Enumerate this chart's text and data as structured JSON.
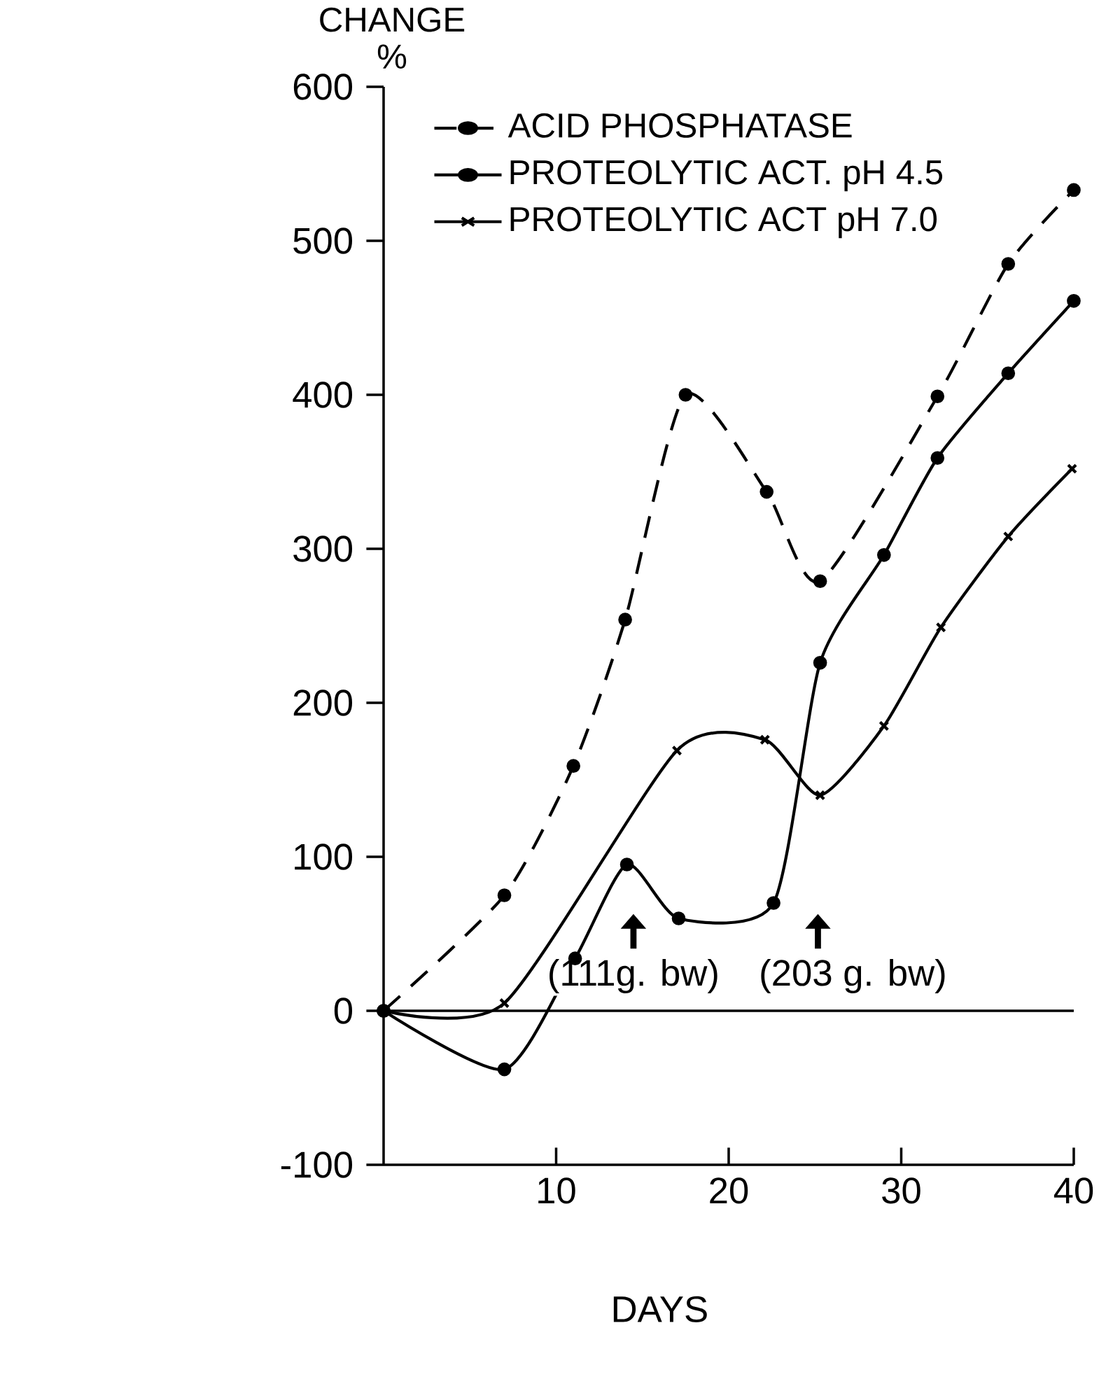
{
  "chart_data": {
    "type": "line",
    "xlabel": "DAYS",
    "ylabel": "CHANGE %",
    "xlim": [
      0,
      40
    ],
    "ylim": [
      -100,
      600
    ],
    "xticks": [
      10,
      20,
      30,
      40
    ],
    "yticks": [
      -100,
      0,
      100,
      200,
      300,
      400,
      500,
      600
    ],
    "legend": "top left",
    "grid": false,
    "series": [
      {
        "name": "ACID PHOSPHATASE",
        "color": "#000000",
        "line_style": "dashed",
        "marker": "circle",
        "x": [
          0,
          7,
          11,
          14,
          17.5,
          22.2,
          25.3,
          32.1,
          36.2,
          40
        ],
        "values": [
          0,
          75,
          159,
          254,
          400,
          337,
          279,
          399,
          485,
          533
        ]
      },
      {
        "name": "PROTEOLYTIC ACT. pH 4.5",
        "color": "#000000",
        "line_style": "solid",
        "marker": "circle",
        "x": [
          0,
          7,
          11.1,
          14.1,
          17.1,
          22.6,
          25.3,
          29,
          32.1,
          36.2,
          40
        ],
        "values": [
          0,
          -38,
          34,
          95,
          60,
          70,
          226,
          296,
          359,
          414,
          461
        ]
      },
      {
        "name": "PROTEOLYTIC ACT pH 7.0",
        "color": "#000000",
        "line_style": "solid",
        "marker": "cross",
        "x": [
          0,
          7,
          17,
          22.1,
          25.3,
          29,
          32.3,
          36.2,
          39.9
        ],
        "values": [
          0,
          5,
          169,
          176,
          140,
          185,
          249,
          308,
          352
        ]
      }
    ],
    "ref_lines": [
      {
        "axis": "y",
        "value": 0,
        "color": "#000000",
        "line_style": "solid"
      }
    ],
    "annotations": [
      "(111g. bw)",
      "(203 g. bw)"
    ]
  }
}
